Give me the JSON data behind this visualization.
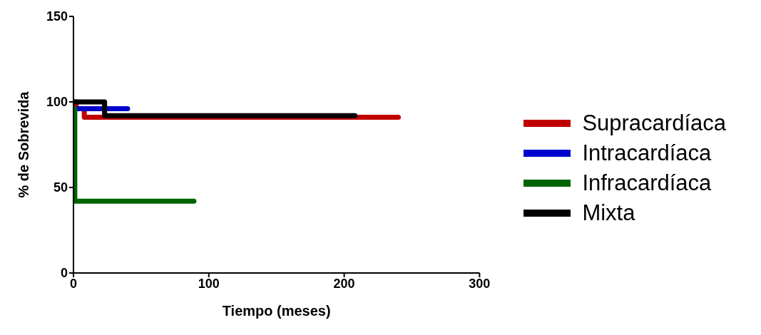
{
  "chart_data": {
    "type": "step",
    "xlabel": "Tiempo (meses)",
    "ylabel": "% de Sobrevida",
    "xlim": [
      0,
      300
    ],
    "xticks": [
      0,
      100,
      200,
      300
    ],
    "ylim": [
      0,
      150
    ],
    "yticks": [
      0,
      50,
      100,
      150
    ],
    "grid": false,
    "legend": "right",
    "marker": "none",
    "line_style": "solid",
    "series": [
      {
        "name": "Supracardíaca",
        "color": "#c00000",
        "x": [
          0,
          2,
          8,
          240
        ],
        "values": [
          100,
          96,
          91,
          91
        ]
      },
      {
        "name": "Intracardíaca",
        "color": "#0000cc",
        "x": [
          0,
          40
        ],
        "values": [
          96,
          96
        ]
      },
      {
        "name": "Infracardíaca",
        "color": "#006400",
        "x": [
          0,
          1,
          89
        ],
        "values": [
          96,
          42,
          42
        ]
      },
      {
        "name": "Mixta",
        "color": "#000000",
        "x": [
          0,
          23,
          208
        ],
        "values": [
          100,
          92,
          92
        ]
      }
    ]
  }
}
